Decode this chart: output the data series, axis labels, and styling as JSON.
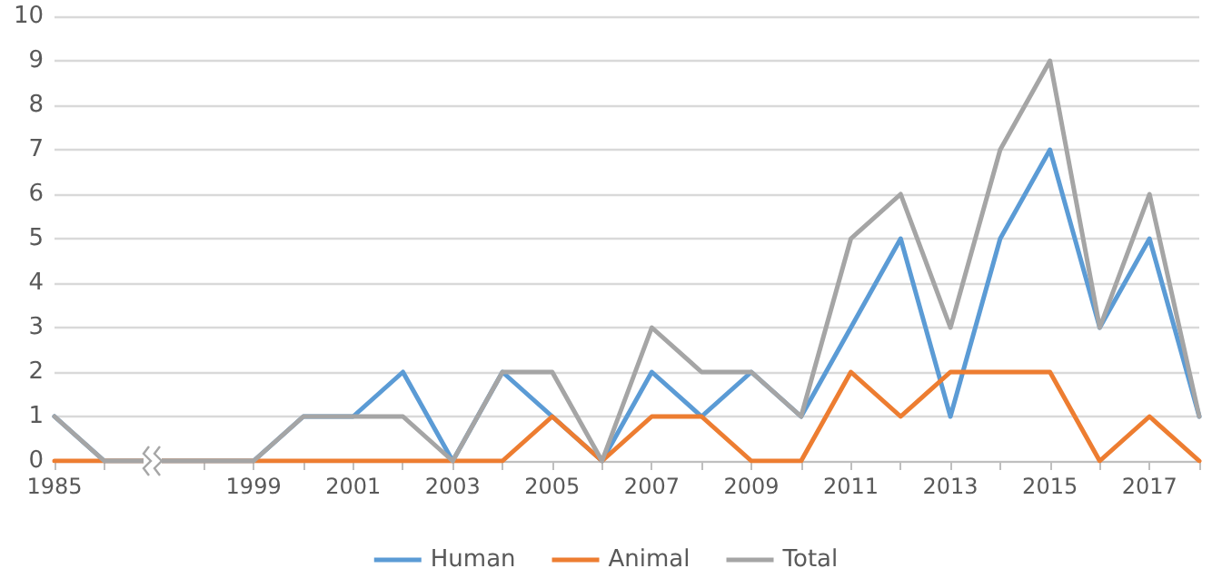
{
  "chart_data": {
    "type": "line",
    "categories": [
      "1985",
      null,
      null,
      null,
      "1999",
      null,
      "2001",
      null,
      "2003",
      null,
      "2005",
      null,
      "2007",
      null,
      "2009",
      null,
      "2011",
      null,
      "2013",
      null,
      "2015",
      null,
      "2017",
      null
    ],
    "series": [
      {
        "name": "Human",
        "color": "#5b9bd5",
        "values": [
          1,
          0,
          0,
          0,
          0,
          1,
          1,
          2,
          0,
          2,
          1,
          0,
          2,
          1,
          2,
          1,
          3,
          5,
          1,
          5,
          7,
          3,
          5,
          1
        ]
      },
      {
        "name": "Animal",
        "color": "#ed7d31",
        "values": [
          0,
          0,
          0,
          0,
          0,
          0,
          0,
          0,
          0,
          0,
          1,
          0,
          1,
          1,
          0,
          0,
          2,
          1,
          2,
          2,
          2,
          0,
          1,
          0
        ]
      },
      {
        "name": "Total",
        "color": "#a5a5a5",
        "values": [
          1,
          0,
          0,
          0,
          0,
          1,
          1,
          1,
          0,
          2,
          2,
          0,
          3,
          2,
          2,
          1,
          5,
          6,
          3,
          7,
          9,
          3,
          6,
          1
        ]
      }
    ],
    "ylim": [
      0,
      10
    ],
    "yticks": [
      0,
      1,
      2,
      3,
      4,
      5,
      6,
      7,
      8,
      9,
      10
    ],
    "grid": "y",
    "legend": "bottom",
    "marker": "none",
    "line_style": "solid"
  }
}
